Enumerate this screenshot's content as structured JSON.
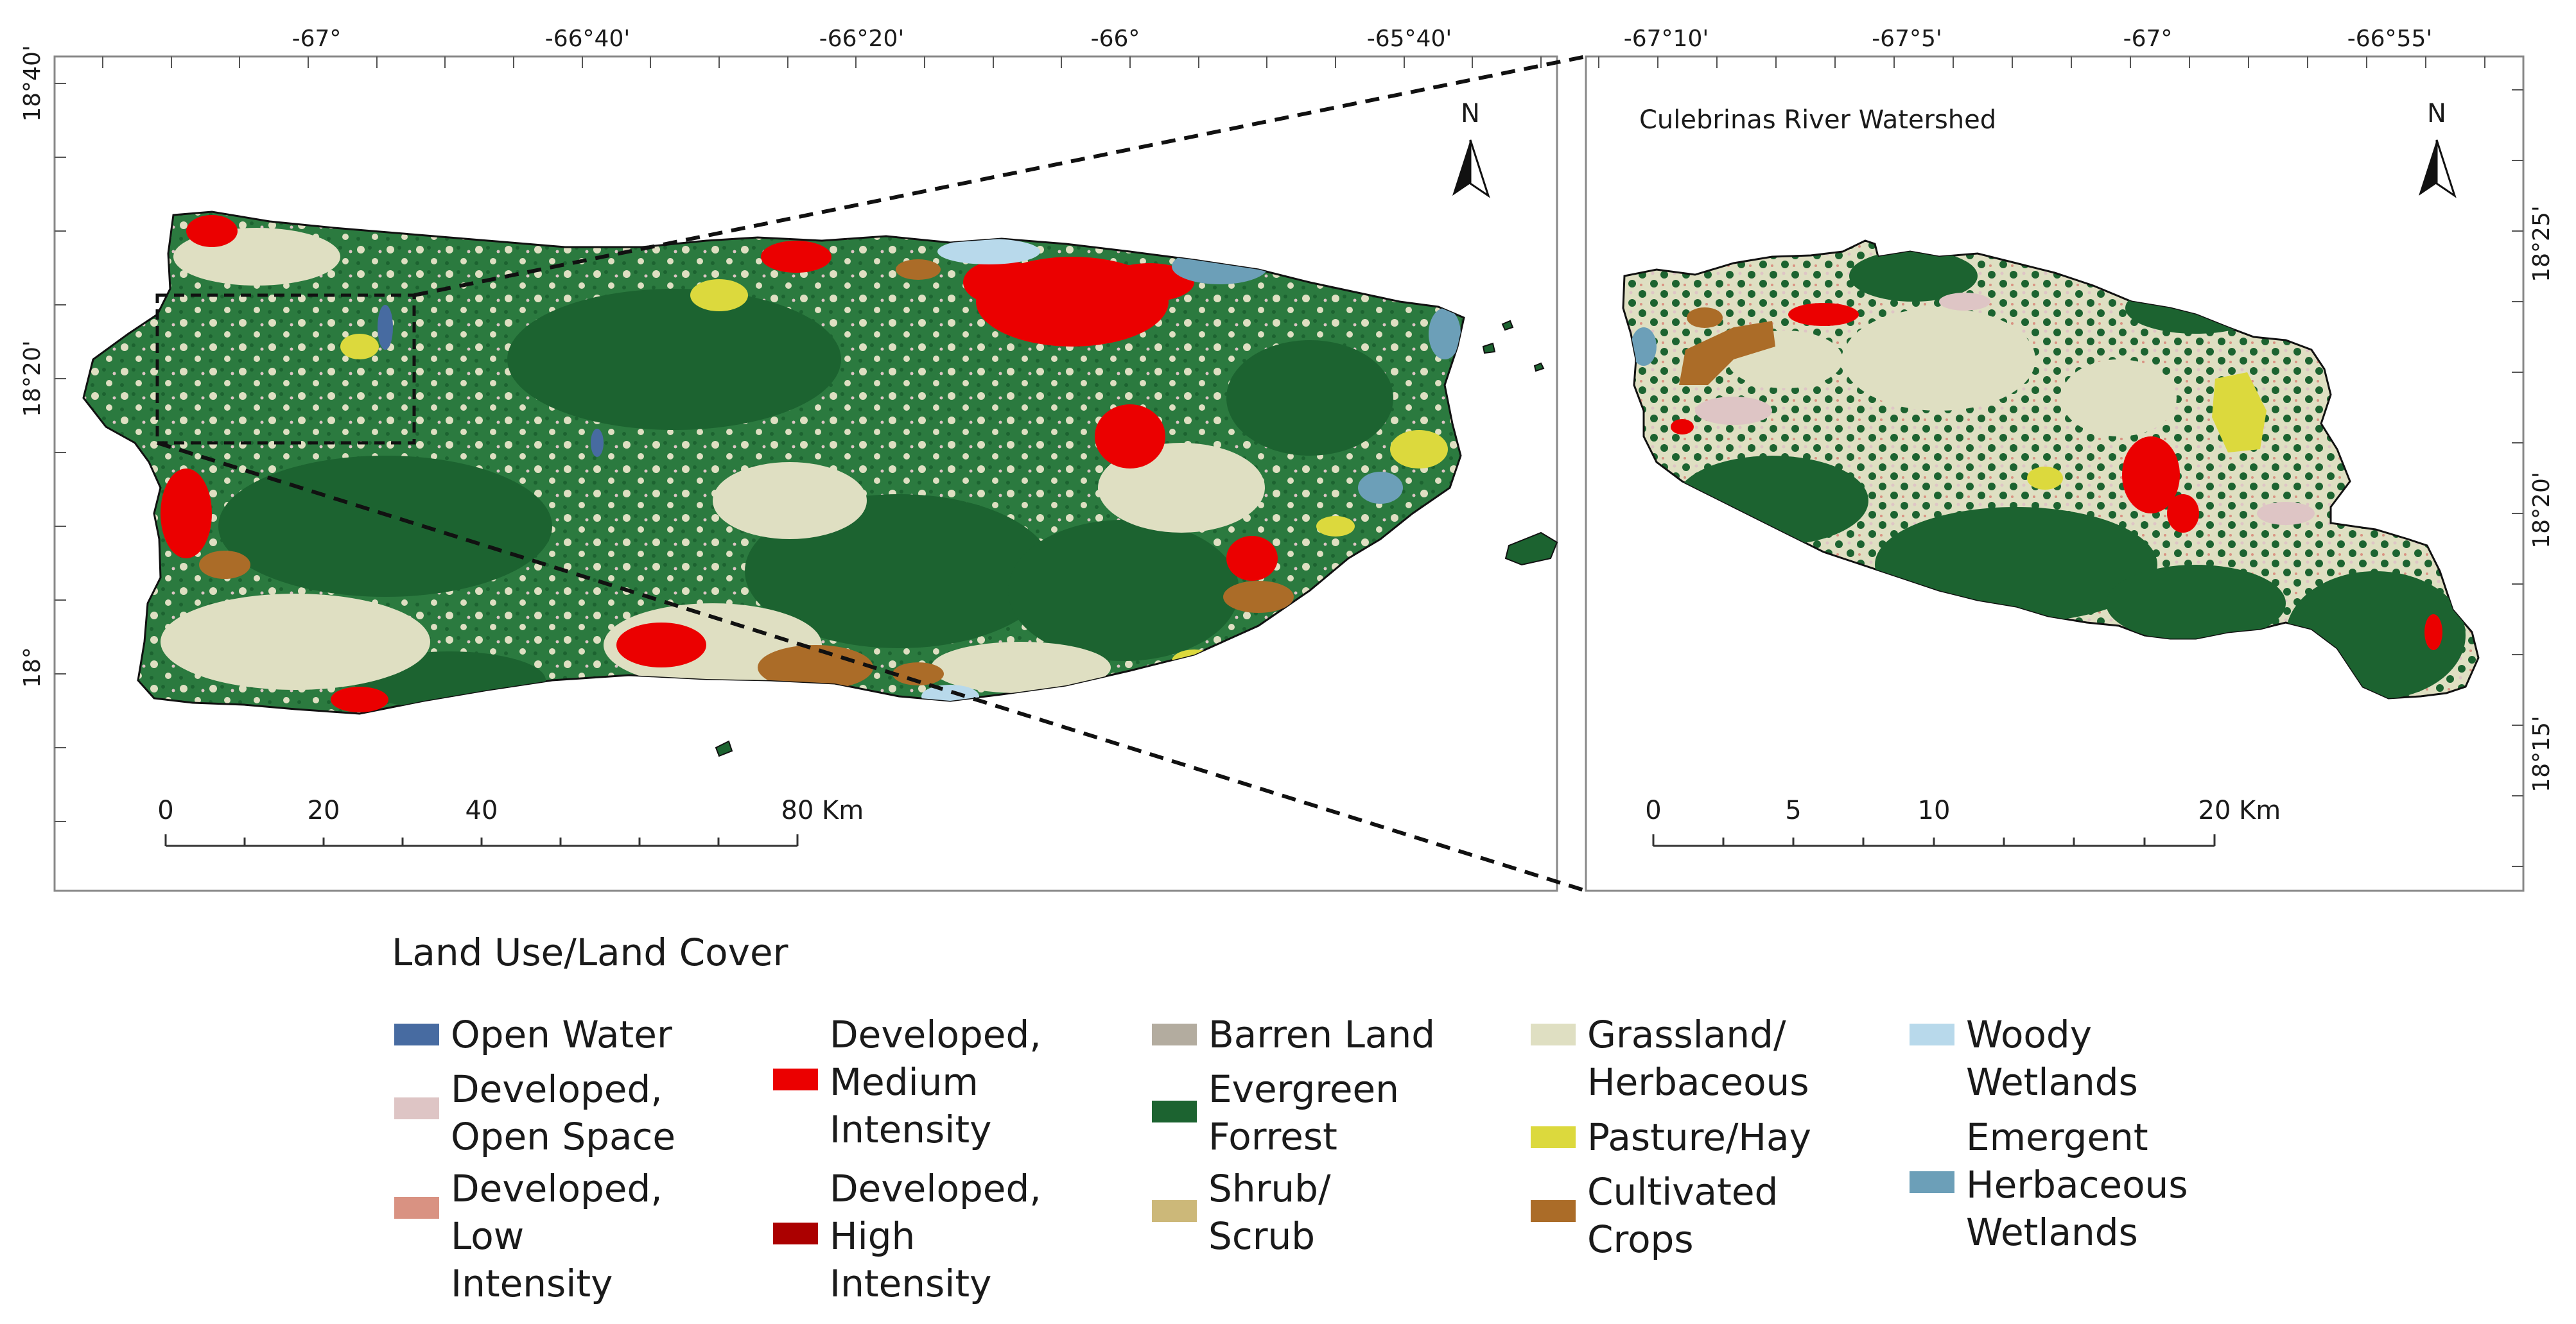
{
  "left_map": {
    "lon_ticks": [
      "-67°",
      "-66°40'",
      "-66°20'",
      "-66°",
      "-65°40'"
    ],
    "lat_ticks": [
      "18°40'",
      "18°20'",
      "18°"
    ],
    "north_label": "N",
    "scale": {
      "labels": [
        "0",
        "20",
        "40",
        "80"
      ],
      "unit": "Km"
    }
  },
  "right_map": {
    "title": "Culebrinas River Watershed",
    "lon_ticks": [
      "-67°10'",
      "-67°5'",
      "-67°",
      "-66°55'"
    ],
    "lat_ticks": [
      "18°25'",
      "18°20'",
      "18°15'"
    ],
    "north_label": "N",
    "scale": {
      "labels": [
        "0",
        "5",
        "10",
        "20"
      ],
      "unit": "Km"
    }
  },
  "legend": {
    "title": "Land Use/Land Cover",
    "columns": [
      [
        {
          "label": "Open Water",
          "color": "#476ba1"
        },
        {
          "label": "Developed, Open Space",
          "color": "#dec5c5"
        },
        {
          "label": "Developed, Low Intensity",
          "color": "#d99282"
        }
      ],
      [
        {
          "label": "Developed, Medium Intensity",
          "color": "#eb0000"
        },
        {
          "label": "Developed, High Intensity",
          "color": "#ab0000"
        }
      ],
      [
        {
          "label": "Barren Land",
          "color": "#b3ac9f"
        },
        {
          "label": "Evergreen Forrest",
          "color": "#1c6330"
        },
        {
          "label": "Shrub/ Scrub",
          "color": "#ccb879"
        }
      ],
      [
        {
          "label": "Grassland/ Herbaceous",
          "color": "#dfdfc2"
        },
        {
          "label": "Pasture/Hay",
          "color": "#dcd93d"
        },
        {
          "label": "Cultivated Crops",
          "color": "#ab6c28"
        }
      ],
      [
        {
          "label": "Woody Wetlands",
          "color": "#b8d9eb"
        },
        {
          "label": "Emergent Herbaceous Wetlands",
          "color": "#6c9fb8"
        }
      ]
    ]
  }
}
